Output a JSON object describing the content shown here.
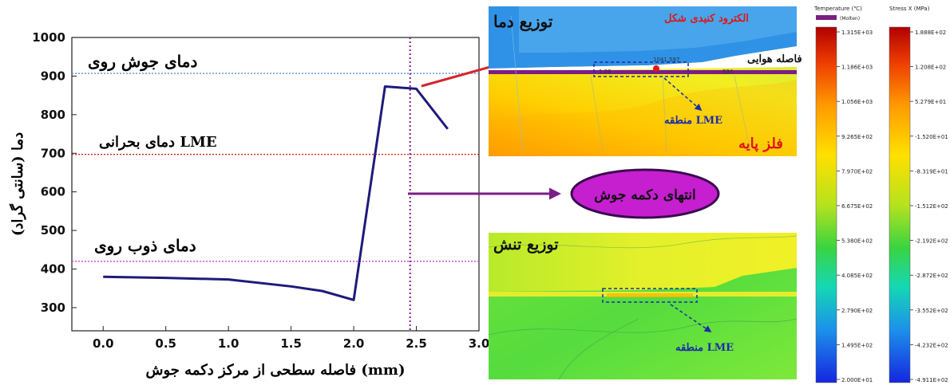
{
  "chart_data": {
    "type": "line",
    "xlabel": "فاصله سطحی از مرکز دکمه جوش (mm)",
    "ylabel": "دما (سانتی گراد)",
    "xlim": [
      -0.25,
      3.0
    ],
    "ylim": [
      240,
      1000
    ],
    "xticks": [
      "0.0",
      "0.5",
      "1.0",
      "1.5",
      "2.0",
      "2.5",
      "3.0"
    ],
    "yticks": [
      "300",
      "400",
      "500",
      "600",
      "700",
      "800",
      "900",
      "1000"
    ],
    "series": [
      {
        "x": [
          0.0,
          0.5,
          1.0,
          1.5,
          1.75,
          2.0,
          2.25,
          2.5,
          2.75
        ],
        "y": [
          380,
          377,
          373,
          355,
          343,
          320,
          873,
          867,
          763
        ],
        "color": "#1f1a7a"
      }
    ],
    "reference_lines": [
      {
        "y": 907,
        "label": "دمای جوش روی",
        "color": "#5b8fd6"
      },
      {
        "y": 697,
        "label": "دمای بحرانی LME",
        "color": "#d21f1f"
      },
      {
        "y": 420,
        "label": "دمای ذوب روی",
        "color": "#d23cd2"
      }
    ],
    "vertical_line": {
      "x": 2.45,
      "color": "#7b1e86"
    }
  },
  "callouts": {
    "button_edge": "انتهای دکمه جوش"
  },
  "panel_top": {
    "title": "توزیع دما",
    "electrode": "الکترود کنیدی شکل",
    "air_gap": "فاصله هوایی",
    "lme_zone": "منطقه LME",
    "base_metal": "فلز پایه",
    "tags": [
      "1041.597",
      "1.06",
      "934"
    ]
  },
  "panel_bottom": {
    "title": "توزیع تنش",
    "lme_zone": "منطقه LME"
  },
  "legend_temp": {
    "title": "Temperature (℃)",
    "molten": "(Molten)",
    "labels": [
      "1.315E+03",
      "1.186E+03",
      "1.056E+03",
      "9.265E+02",
      "7.970E+02",
      "6.675E+02",
      "5.380E+02",
      "4.085E+02",
      "2.790E+02",
      "1.495E+02",
      "2.000E+01"
    ]
  },
  "legend_stress": {
    "title": "Stress X (MPa)",
    "labels": [
      "1.888E+02",
      "1.208E+02",
      "5.279E+01",
      "-1.520E+01",
      "-8.319E+01",
      "-1.512E+02",
      "-2.192E+02",
      "-2.872E+02",
      "-3.552E+02",
      "-4.232E+02",
      "-4.911E+02"
    ]
  },
  "colors": {
    "line": "#1f1a7a",
    "callout_fill": "#c51fcf",
    "arrow_red": "#d3262c",
    "arrow_purple": "#7b1e86"
  }
}
